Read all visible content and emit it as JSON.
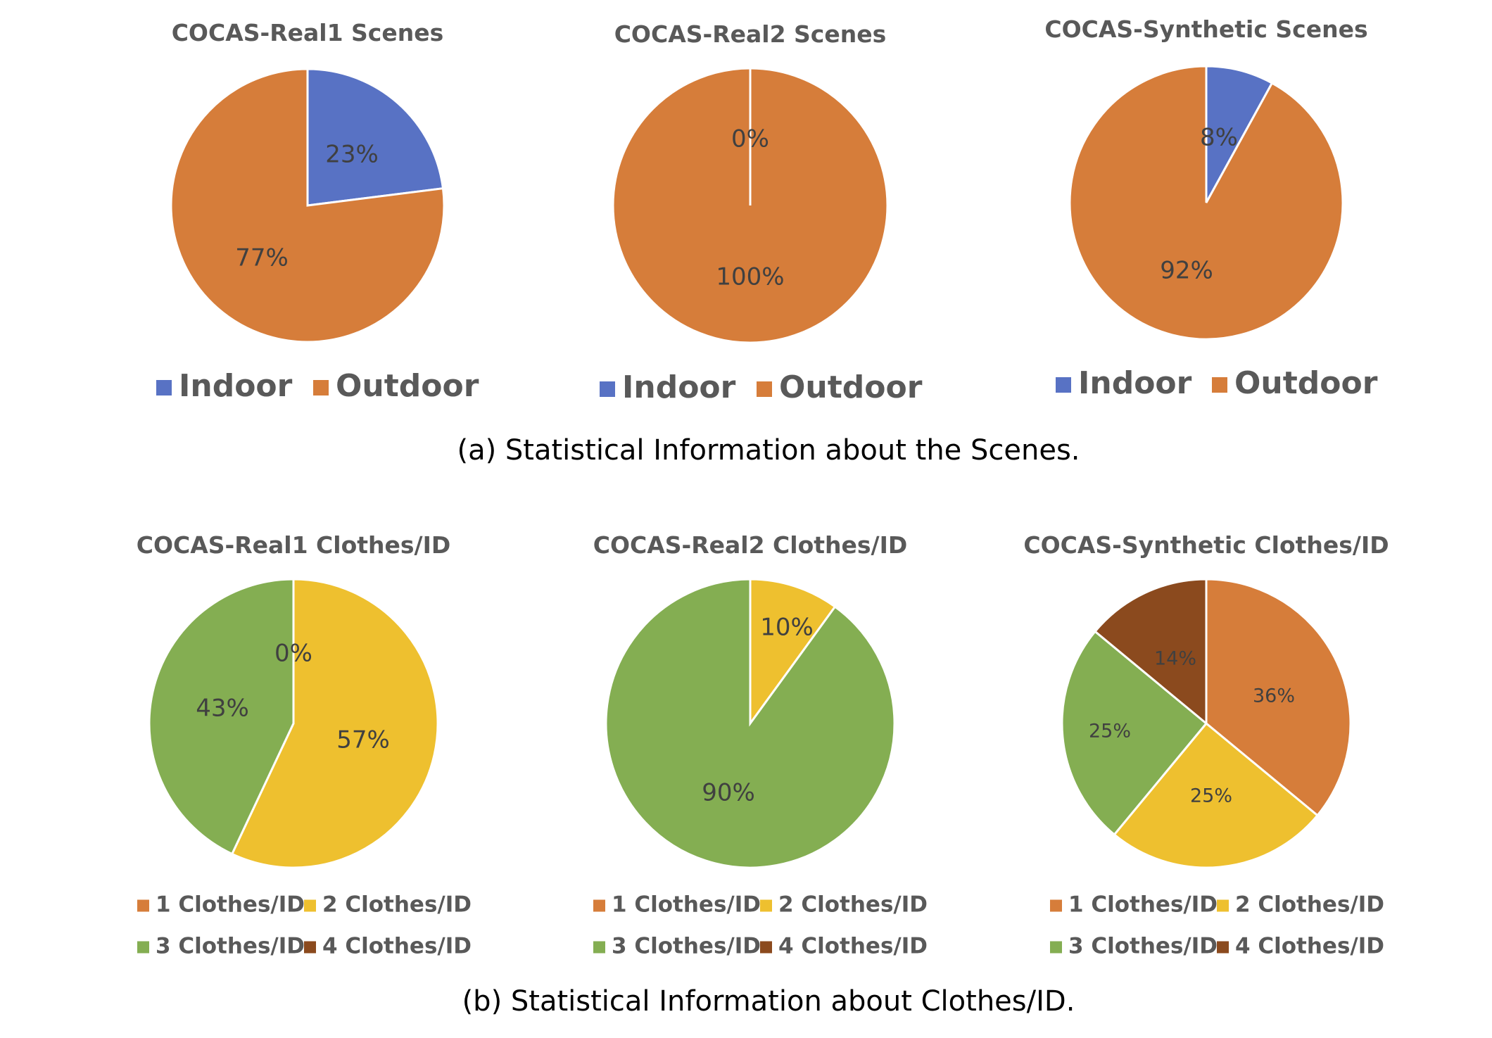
{
  "colors": {
    "indoor": "#5872C4",
    "outdoor": "#D67D3A",
    "clothes1": "#D67D3A",
    "clothes2": "#EEC02F",
    "clothes3": "#84AE52",
    "clothes4": "#8B4A1E"
  },
  "captions": {
    "scenes": "(a) Statistical Information about the Scenes.",
    "clothes": "(b) Statistical Information about Clothes/ID."
  },
  "chart_data": [
    {
      "type": "pie",
      "title": "COCAS-Real1 Scenes",
      "categories": [
        "Indoor",
        "Outdoor"
      ],
      "values": [
        23,
        77
      ],
      "labels": [
        "23%",
        "77%"
      ],
      "legend_placement": "bottom"
    },
    {
      "type": "pie",
      "title": "COCAS-Real2 Scenes",
      "categories": [
        "Indoor",
        "Outdoor"
      ],
      "values": [
        0,
        100
      ],
      "labels": [
        "0%",
        "100%"
      ],
      "legend_placement": "bottom"
    },
    {
      "type": "pie",
      "title": "COCAS-Synthetic Scenes",
      "categories": [
        "Indoor",
        "Outdoor"
      ],
      "values": [
        8,
        92
      ],
      "labels": [
        "8%",
        "92%"
      ],
      "legend_placement": "bottom"
    },
    {
      "type": "pie",
      "title": "COCAS-Real1 Clothes/ID",
      "categories": [
        "1 Clothes/ID",
        "2 Clothes/ID",
        "3 Clothes/ID",
        "4 Clothes/ID"
      ],
      "values": [
        0,
        57,
        43,
        0
      ],
      "labels": [
        "0%",
        "57%",
        "43%",
        ""
      ],
      "legend_placement": "bottom"
    },
    {
      "type": "pie",
      "title": "COCAS-Real2 Clothes/ID",
      "categories": [
        "1 Clothes/ID",
        "2 Clothes/ID",
        "3 Clothes/ID",
        "4 Clothes/ID"
      ],
      "values": [
        0,
        10,
        90,
        0
      ],
      "labels": [
        "",
        "10%",
        "90%",
        ""
      ],
      "legend_placement": "bottom"
    },
    {
      "type": "pie",
      "title": "COCAS-Synthetic Clothes/ID",
      "categories": [
        "1 Clothes/ID",
        "2 Clothes/ID",
        "3 Clothes/ID",
        "4 Clothes/ID"
      ],
      "values": [
        36,
        25,
        25,
        14
      ],
      "labels": [
        "36%",
        "25%",
        "25%",
        "14%"
      ],
      "legend_placement": "bottom"
    }
  ]
}
